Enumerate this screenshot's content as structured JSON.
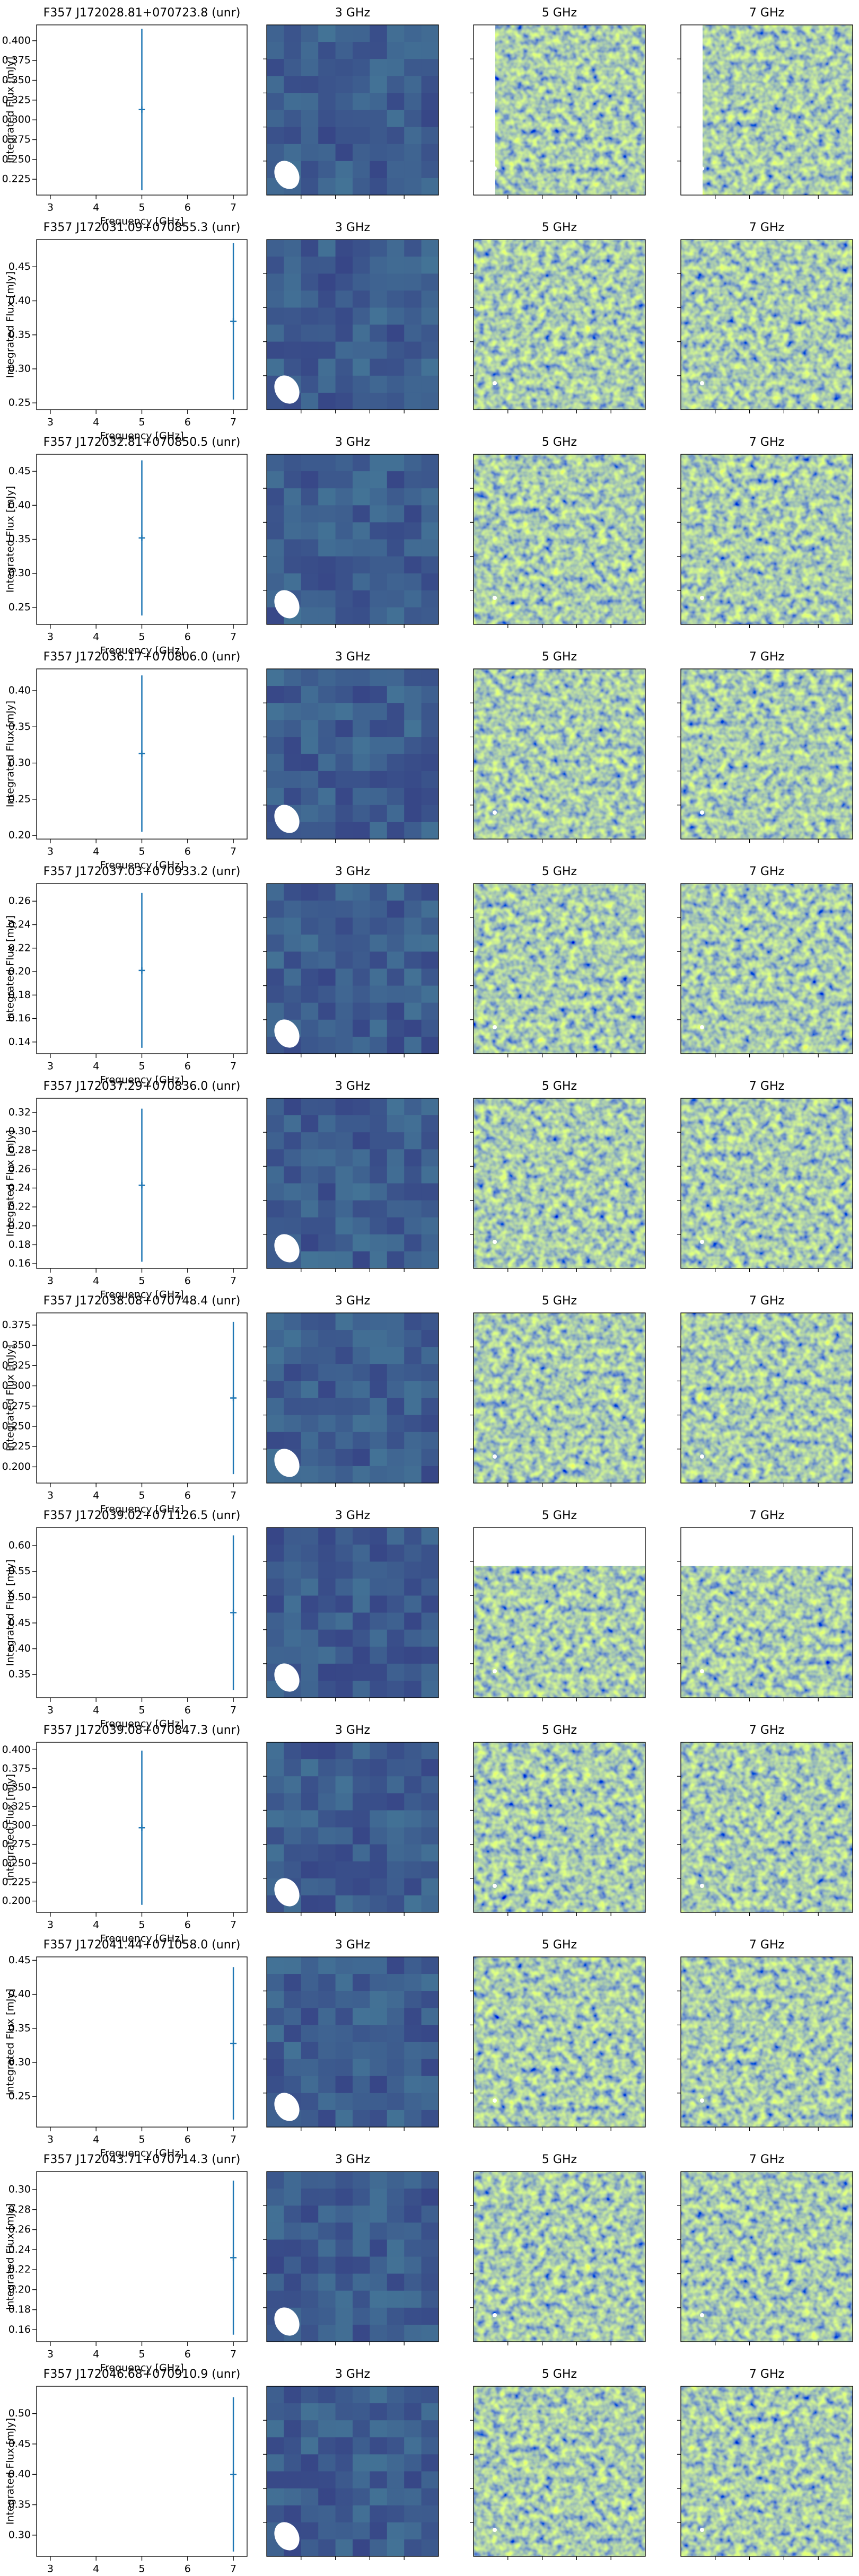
{
  "chart_data": [
    {
      "type": "errorbar",
      "title": "F357 J172028.81+070723.8 (unr)",
      "xlabel": "Frequency [GHz]",
      "ylabel": "Integrated Flux [mJy]",
      "color": "#1f77b4",
      "x": [
        5
      ],
      "values": [
        0.313
      ],
      "errors": [
        0.102
      ],
      "xlim": [
        2.7,
        7.3
      ],
      "xticks": [
        3,
        4,
        5,
        6,
        7
      ],
      "ylim": [
        0.205,
        0.42
      ],
      "yticks": [
        0.225,
        {
          "value": 0.25,
          "label": "0.250"
        },
        0.275,
        {
          "value": 0.3,
          "label": "0.300"
        },
        0.325,
        {
          "value": 0.35,
          "label": "0.350"
        },
        0.375,
        {
          "value": 0.4,
          "label": "0.400"
        }
      ]
    },
    {
      "type": "errorbar",
      "title": "F357 J172031.09+070855.3 (unr)",
      "xlabel": "Frequency [GHz]",
      "ylabel": "Integrated Flux [mJy]",
      "color": "#1f77b4",
      "x": [
        7
      ],
      "values": [
        0.37
      ],
      "errors": [
        0.115
      ],
      "xlim": [
        2.7,
        7.3
      ],
      "xticks": [
        3,
        4,
        5,
        6,
        7
      ],
      "ylim": [
        0.24,
        0.49
      ],
      "yticks": [
        0.25,
        {
          "value": 0.3,
          "label": "0.30"
        },
        0.35,
        {
          "value": 0.4,
          "label": "0.40"
        },
        0.45
      ]
    },
    {
      "type": "errorbar",
      "title": "F357 J172032.81+070850.5 (unr)",
      "xlabel": "Frequency [GHz]",
      "ylabel": "Integrated Flux [mJy]",
      "color": "#1f77b4",
      "x": [
        5
      ],
      "values": [
        0.352
      ],
      "errors": [
        0.114
      ],
      "xlim": [
        2.7,
        7.3
      ],
      "xticks": [
        3,
        4,
        5,
        6,
        7
      ],
      "ylim": [
        0.225,
        0.475
      ],
      "yticks": [
        0.25,
        {
          "value": 0.3,
          "label": "0.30"
        },
        0.35,
        {
          "value": 0.4,
          "label": "0.40"
        },
        0.45
      ]
    },
    {
      "type": "errorbar",
      "title": "F357 J172036.17+070806.0 (unr)",
      "xlabel": "Frequency [GHz]",
      "ylabel": "Integrated Flux [mJy]",
      "color": "#1f77b4",
      "x": [
        5
      ],
      "values": [
        0.313
      ],
      "errors": [
        0.108
      ],
      "xlim": [
        2.7,
        7.3
      ],
      "xticks": [
        3,
        4,
        5,
        6,
        7
      ],
      "ylim": [
        0.195,
        0.43
      ],
      "yticks": [
        {
          "value": 0.2,
          "label": "0.20"
        },
        0.25,
        {
          "value": 0.3,
          "label": "0.30"
        },
        0.35,
        {
          "value": 0.4,
          "label": "0.40"
        }
      ]
    },
    {
      "type": "errorbar",
      "title": "F357 J172037.03+070933.2 (unr)",
      "xlabel": "Frequency [GHz]",
      "ylabel": "Integrated Flux [mJy]",
      "color": "#1f77b4",
      "x": [
        5
      ],
      "values": [
        0.201
      ],
      "errors": [
        0.066
      ],
      "xlim": [
        2.7,
        7.3
      ],
      "xticks": [
        3,
        4,
        5,
        6,
        7
      ],
      "ylim": [
        0.13,
        0.275
      ],
      "yticks": [
        0.14,
        0.16,
        0.18,
        {
          "value": 0.2,
          "label": "0.20"
        },
        0.22,
        0.24,
        0.26
      ]
    },
    {
      "type": "errorbar",
      "title": "F357 J172037.29+070836.0 (unr)",
      "xlabel": "Frequency [GHz]",
      "ylabel": "Integrated Flux [mJy]",
      "color": "#1f77b4",
      "x": [
        5
      ],
      "values": [
        0.243
      ],
      "errors": [
        0.081
      ],
      "xlim": [
        2.7,
        7.3
      ],
      "xticks": [
        3,
        4,
        5,
        6,
        7
      ],
      "ylim": [
        0.155,
        0.335
      ],
      "yticks": [
        0.16,
        0.18,
        {
          "value": 0.2,
          "label": "0.20"
        },
        0.22,
        0.24,
        0.26,
        0.28,
        {
          "value": 0.3,
          "label": "0.30"
        },
        0.32
      ]
    },
    {
      "type": "errorbar",
      "title": "F357 J172038.08+070748.4 (unr)",
      "xlabel": "Frequency [GHz]",
      "ylabel": "Integrated Flux [mJy]",
      "color": "#1f77b4",
      "x": [
        7
      ],
      "values": [
        0.285
      ],
      "errors": [
        0.094
      ],
      "xlim": [
        2.7,
        7.3
      ],
      "xticks": [
        3,
        4,
        5,
        6,
        7
      ],
      "ylim": [
        0.18,
        0.39
      ],
      "yticks": [
        {
          "value": 0.2,
          "label": "0.200"
        },
        0.225,
        {
          "value": 0.25,
          "label": "0.250"
        },
        0.275,
        {
          "value": 0.3,
          "label": "0.300"
        },
        0.325,
        {
          "value": 0.35,
          "label": "0.350"
        },
        0.375
      ]
    },
    {
      "type": "errorbar",
      "title": "F357 J172039.02+071126.5 (unr)",
      "xlabel": "Frequency [GHz]",
      "ylabel": "Integrated Flux [mJy]",
      "color": "#1f77b4",
      "x": [
        7
      ],
      "values": [
        0.47
      ],
      "errors": [
        0.15
      ],
      "xlim": [
        2.7,
        7.3
      ],
      "xticks": [
        3,
        4,
        5,
        6,
        7
      ],
      "ylim": [
        0.305,
        0.635
      ],
      "yticks": [
        0.35,
        {
          "value": 0.4,
          "label": "0.40"
        },
        0.45,
        {
          "value": 0.5,
          "label": "0.50"
        },
        0.55,
        {
          "value": 0.6,
          "label": "0.60"
        }
      ]
    },
    {
      "type": "errorbar",
      "title": "F357 J172039.08+070847.3 (unr)",
      "xlabel": "Frequency [GHz]",
      "ylabel": "Integrated Flux [mJy]",
      "color": "#1f77b4",
      "x": [
        5
      ],
      "values": [
        0.297
      ],
      "errors": [
        0.102
      ],
      "xlim": [
        2.7,
        7.3
      ],
      "xticks": [
        3,
        4,
        5,
        6,
        7
      ],
      "ylim": [
        0.185,
        0.41
      ],
      "yticks": [
        {
          "value": 0.2,
          "label": "0.200"
        },
        0.225,
        {
          "value": 0.25,
          "label": "0.250"
        },
        0.275,
        {
          "value": 0.3,
          "label": "0.300"
        },
        0.325,
        {
          "value": 0.35,
          "label": "0.350"
        },
        0.375,
        {
          "value": 0.4,
          "label": "0.400"
        }
      ]
    },
    {
      "type": "errorbar",
      "title": "F357 J172041.44+071058.0 (unr)",
      "xlabel": "Frequency [GHz]",
      "ylabel": "Integrated Flux [mJy]",
      "color": "#1f77b4",
      "x": [
        7
      ],
      "values": [
        0.328
      ],
      "errors": [
        0.112
      ],
      "xlim": [
        2.7,
        7.3
      ],
      "xticks": [
        3,
        4,
        5,
        6,
        7
      ],
      "ylim": [
        0.205,
        0.455
      ],
      "yticks": [
        0.25,
        {
          "value": 0.3,
          "label": "0.30"
        },
        0.35,
        {
          "value": 0.4,
          "label": "0.40"
        },
        0.45
      ]
    },
    {
      "type": "errorbar",
      "title": "F357 J172043.71+070714.3 (unr)",
      "xlabel": "Frequency [GHz]",
      "ylabel": "Integrated Flux [mJy]",
      "color": "#1f77b4",
      "x": [
        7
      ],
      "values": [
        0.232
      ],
      "errors": [
        0.077
      ],
      "xlim": [
        2.7,
        7.3
      ],
      "xticks": [
        3,
        4,
        5,
        6,
        7
      ],
      "ylim": [
        0.148,
        0.318
      ],
      "yticks": [
        0.16,
        0.18,
        {
          "value": 0.2,
          "label": "0.20"
        },
        0.22,
        0.24,
        0.26,
        0.28,
        {
          "value": 0.3,
          "label": "0.30"
        }
      ]
    },
    {
      "type": "errorbar",
      "title": "F357 J172046.68+070910.9 (unr)",
      "xlabel": "Frequency [GHz]",
      "ylabel": "Integrated Flux [mJy]",
      "color": "#1f77b4",
      "x": [
        7
      ],
      "values": [
        0.4
      ],
      "errors": [
        0.127
      ],
      "xlim": [
        2.7,
        7.3
      ],
      "xticks": [
        3,
        4,
        5,
        6,
        7
      ],
      "ylim": [
        0.265,
        0.545
      ],
      "yticks": [
        {
          "value": 0.3,
          "label": "0.30"
        },
        0.35,
        {
          "value": 0.4,
          "label": "0.40"
        },
        0.45,
        {
          "value": 0.5,
          "label": "0.50"
        }
      ]
    }
  ],
  "image_titles": [
    [
      "3 GHz",
      "5 GHz",
      "7 GHz"
    ],
    [
      "3 GHz",
      "5 GHz",
      "7 GHz"
    ],
    [
      "3 GHz",
      "5 GHz",
      "7 GHz"
    ],
    [
      "3 GHz",
      "5 GHz",
      "7 GHz"
    ],
    [
      "3 GHz",
      "5 GHz",
      "7 GHz"
    ],
    [
      "3 GHz",
      "5 GHz",
      "7 GHz"
    ],
    [
      "3 GHz",
      "5 GHz",
      "7 GHz"
    ],
    [
      "3 GHz",
      "5 GHz",
      "7 GHz"
    ],
    [
      "3 GHz",
      "5 GHz",
      "7 GHz"
    ],
    [
      "3 GHz",
      "5 GHz",
      "7 GHz"
    ],
    [
      "3 GHz",
      "5 GHz",
      "7 GHz"
    ],
    [
      "3 GHz",
      "5 GHz",
      "7 GHz"
    ]
  ]
}
